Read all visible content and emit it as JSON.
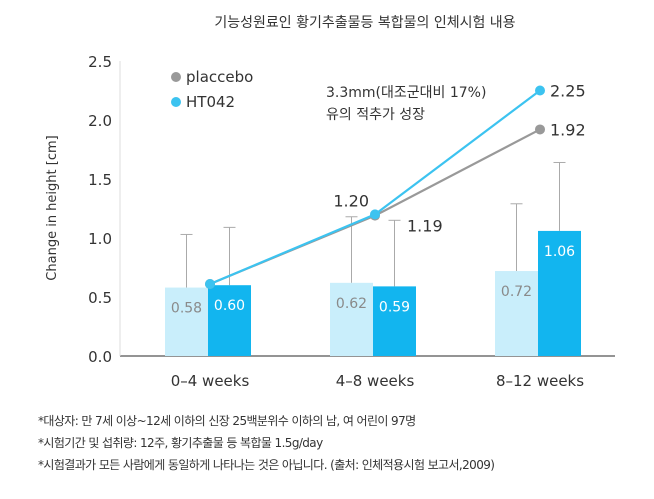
{
  "chart_data": {
    "type": "bar",
    "title": "기능성원료인 황기추출물등 복합물의 인체시험 내용",
    "ylabel": "Change in height [cm]",
    "xlabel": "",
    "ylim": [
      0,
      2.5
    ],
    "yticks": [
      "0.0",
      "0.5",
      "1.0",
      "1.5",
      "2.0",
      "2.5"
    ],
    "categories": [
      "0-4 weeks",
      "4-8 weeks",
      "8-12 weeks"
    ],
    "bar_series": [
      {
        "name": "placcebo",
        "values": [
          0.58,
          0.62,
          0.72
        ],
        "error_upper": [
          1.03,
          1.18,
          1.29
        ],
        "color": "#c9eefb",
        "label_color": "#8a8a8a"
      },
      {
        "name": "HT042",
        "values": [
          0.6,
          0.59,
          1.06
        ],
        "error_upper": [
          1.09,
          1.15,
          1.64
        ],
        "color": "#12b5ef",
        "label_color": "#ffffff"
      }
    ],
    "line_series": [
      {
        "name": "placcebo",
        "values": [
          0.61,
          1.19,
          1.92
        ],
        "labels": [
          "",
          "1.19",
          "1.92"
        ],
        "color": "#999999"
      },
      {
        "name": "HT042",
        "values": [
          0.61,
          1.2,
          2.25
        ],
        "labels": [
          "",
          "1.20",
          "2.25"
        ],
        "color": "#3cc3f0"
      }
    ],
    "legend": {
      "position": "top-left",
      "items": [
        "placcebo",
        "HT042"
      ]
    },
    "annotation": [
      "3.3mm(대조군대비 17%)",
      "유의 적추가 성장"
    ],
    "grid": false
  },
  "notes": [
    "*대상자: 만 7세 이상~12세 이하의 신장 25백분위수 이하의 남, 여 어린이 97명",
    "*시험기간 및 섭취량: 12주, 황기추출물 등 복합물 1.5g/day",
    "*시험결과가 모든 사람에게 동일하게 나타나는 것은 아닙니다. (출처: 인체적용시험 보고서,2009)"
  ]
}
